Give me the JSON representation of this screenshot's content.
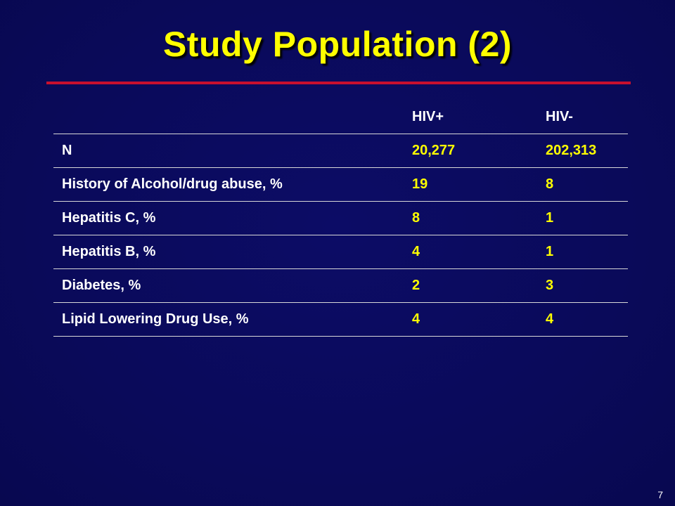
{
  "slide": {
    "title": "Study Population (2)",
    "page_number": "7"
  },
  "table": {
    "headers": [
      "",
      "HIV+",
      "HIV-"
    ],
    "rows": [
      {
        "label": "N",
        "hiv_pos": "20,277",
        "hiv_neg": "202,313"
      },
      {
        "label": "History of Alcohol/drug abuse, %",
        "hiv_pos": "19",
        "hiv_neg": "8"
      },
      {
        "label": "Hepatitis C, %",
        "hiv_pos": "8",
        "hiv_neg": "1"
      },
      {
        "label": "Hepatitis B, %",
        "hiv_pos": "4",
        "hiv_neg": "1"
      },
      {
        "label": "Diabetes, %",
        "hiv_pos": "2",
        "hiv_neg": "3"
      },
      {
        "label": "Lipid Lowering Drug Use, %",
        "hiv_pos": "4",
        "hiv_neg": "4"
      }
    ]
  },
  "colors": {
    "background": "#0b0b5e",
    "title": "#ffff00",
    "rule": "#c8102e",
    "value_text": "#ffff00",
    "label_text": "#ffffff"
  }
}
